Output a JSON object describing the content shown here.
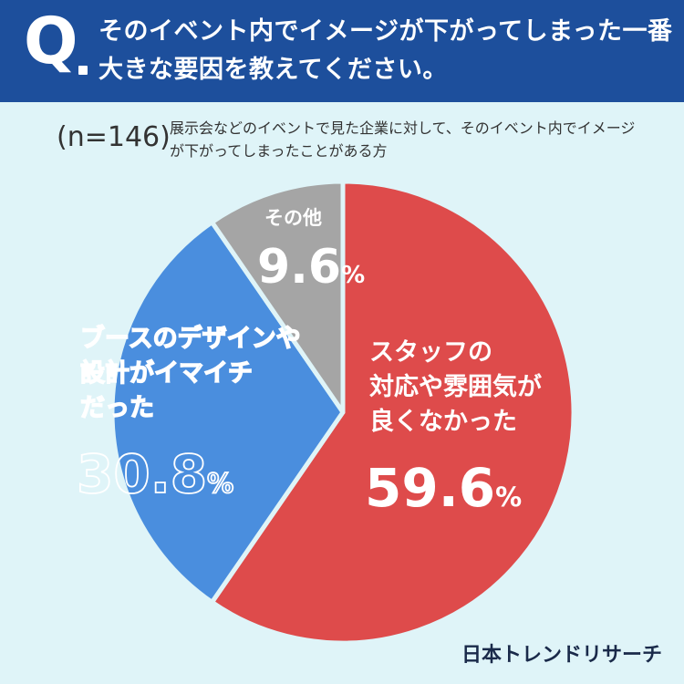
{
  "header": {
    "q_mark": "Q",
    "question": "そのイベント内でイメージが下がってしまった一番大きな要因を教えてください。"
  },
  "sample": {
    "n_label": "(n=146)",
    "description": "展示会などのイベントで見た企業に対して、そのイベント内でイメージが下がってしまったことがある方"
  },
  "colors": {
    "staff": "#de4b4b",
    "booth": "#4a8ede",
    "other": "#a5a5a5"
  },
  "chart_data": {
    "type": "pie",
    "start_angle_deg": 0,
    "direction": "clockwise",
    "slices": [
      {
        "label_lines": [
          "スタッフの",
          "対応や雰囲気が",
          "良くなかった"
        ],
        "value": 59.6,
        "display": "59.6",
        "color": "#de4b4b",
        "text_color": "#ffffff"
      },
      {
        "label_lines": [
          "ブースのデザインや",
          "設計がイマイチ",
          "だった"
        ],
        "value": 30.8,
        "display": "30.8",
        "color": "#4a8ede",
        "text_color": "#ffffff",
        "outline_text": true
      },
      {
        "label_lines": [
          "その他"
        ],
        "value": 9.6,
        "display": "9.6",
        "color": "#a5a5a5",
        "text_color": "#ffffff"
      }
    ],
    "unit": "%"
  },
  "brand": "日本トレンドリサーチ"
}
